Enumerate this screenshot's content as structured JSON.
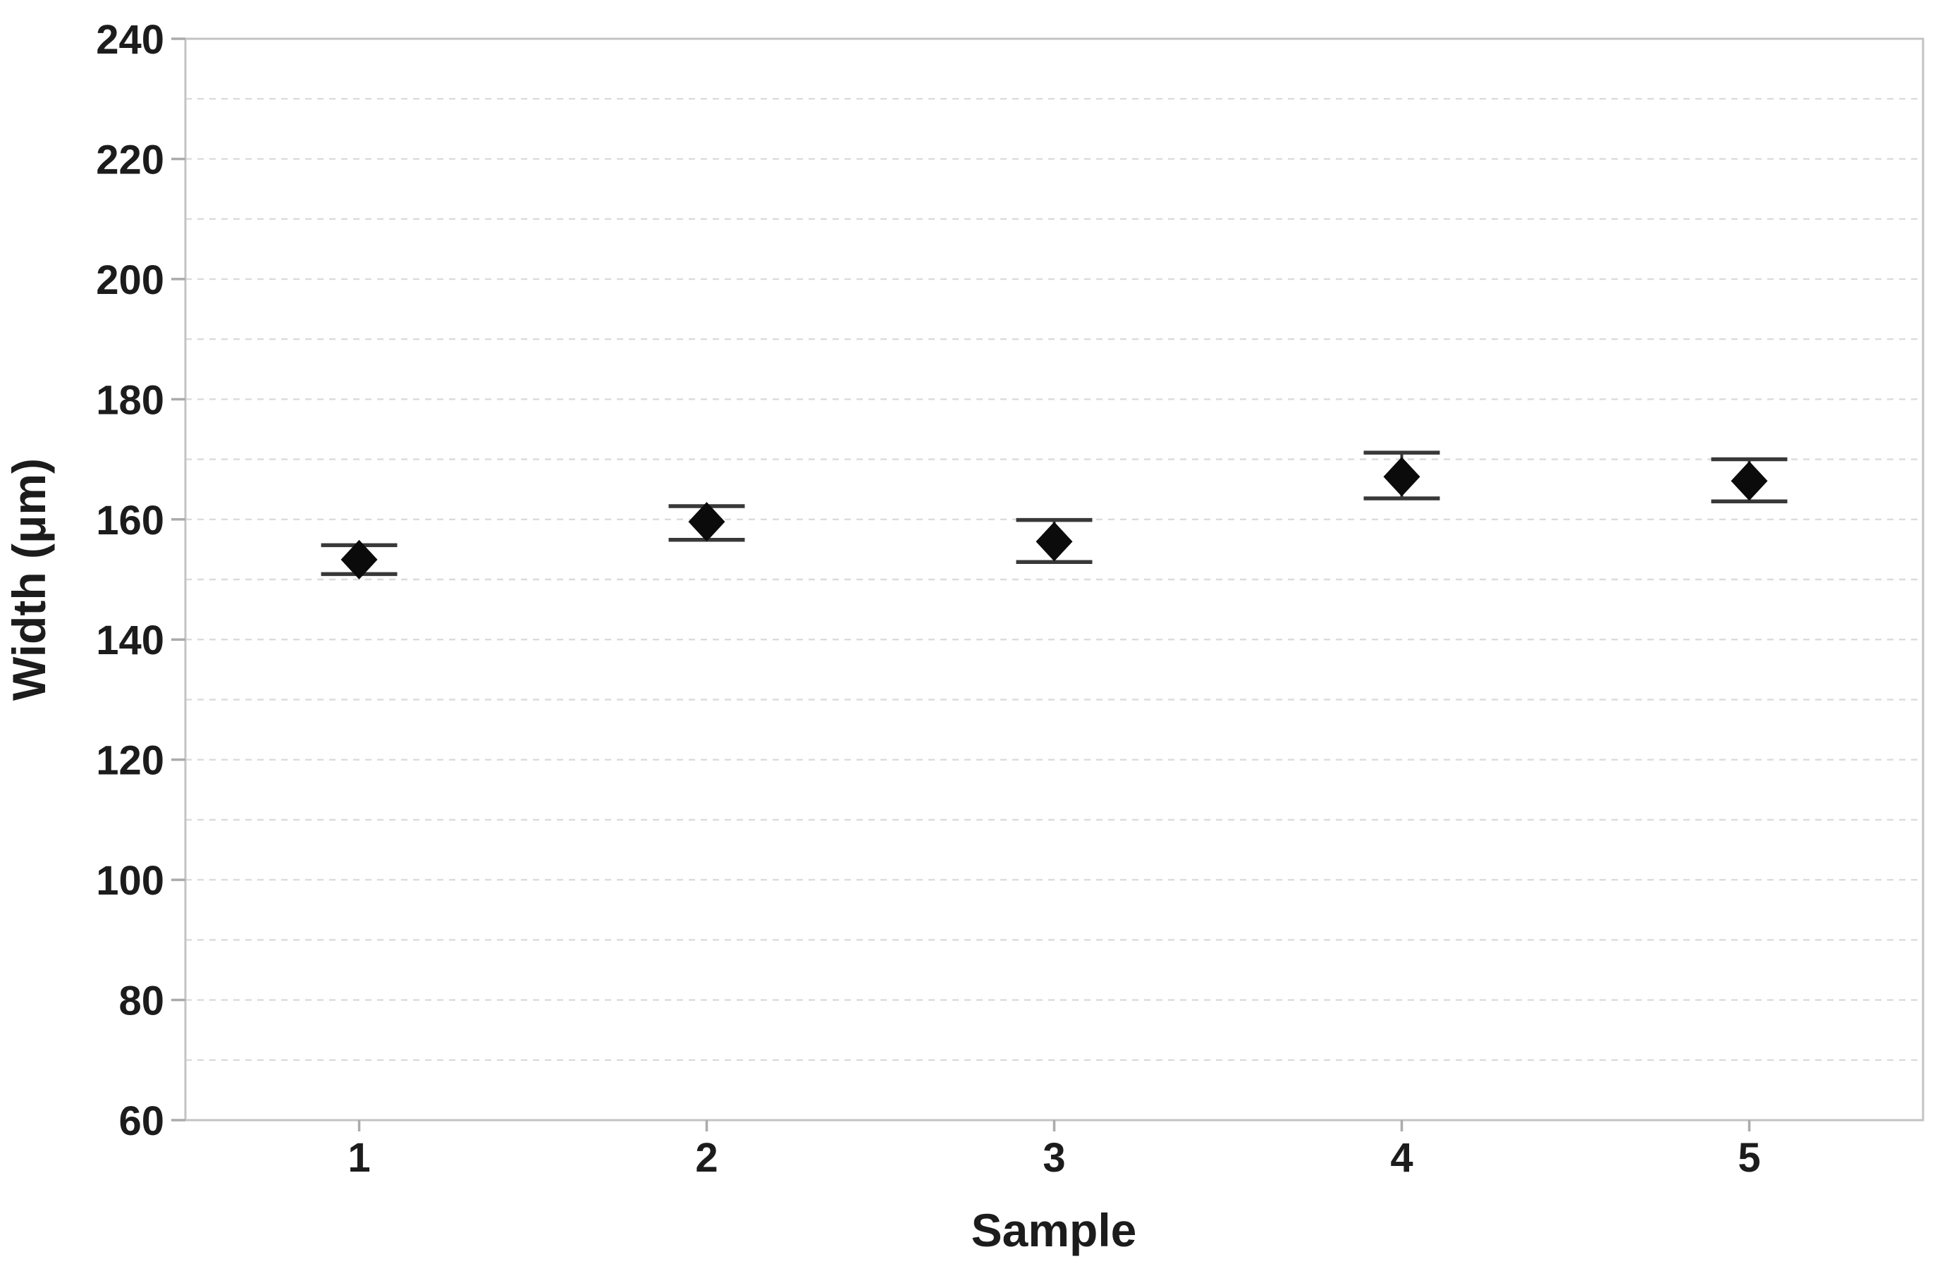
{
  "chart_data": {
    "type": "scatter",
    "subtype": "interval-plot-with-error-bars",
    "xlabel": "Sample",
    "ylabel": "Width (μm)",
    "categories": [
      "1",
      "2",
      "3",
      "4",
      "5"
    ],
    "series": [
      {
        "name": "Width",
        "marker": "diamond",
        "points": [
          {
            "x": 1,
            "mean": 153.3,
            "ci_low": 150.9,
            "ci_high": 155.7
          },
          {
            "x": 2,
            "mean": 159.6,
            "ci_low": 156.6,
            "ci_high": 162.2
          },
          {
            "x": 3,
            "mean": 156.3,
            "ci_low": 152.9,
            "ci_high": 159.9
          },
          {
            "x": 4,
            "mean": 167.1,
            "ci_low": 163.5,
            "ci_high": 171.1
          },
          {
            "x": 5,
            "mean": 166.4,
            "ci_low": 163.0,
            "ci_high": 170.0
          }
        ]
      }
    ],
    "ylim": [
      60,
      240
    ],
    "yticks": [
      60,
      80,
      100,
      120,
      140,
      160,
      180,
      200,
      220,
      240
    ],
    "ytick_step": 20,
    "grid_step": 10,
    "grid": "horizontal-dashed",
    "legend": "none",
    "colors": {
      "marker": "#0b0b0b",
      "interval_bar": "#383838",
      "frame": "#c3c3c3",
      "grid": "#dbdbdb",
      "tick": "#ababab",
      "text": "#1c1c1c",
      "background": "#ffffff"
    }
  }
}
